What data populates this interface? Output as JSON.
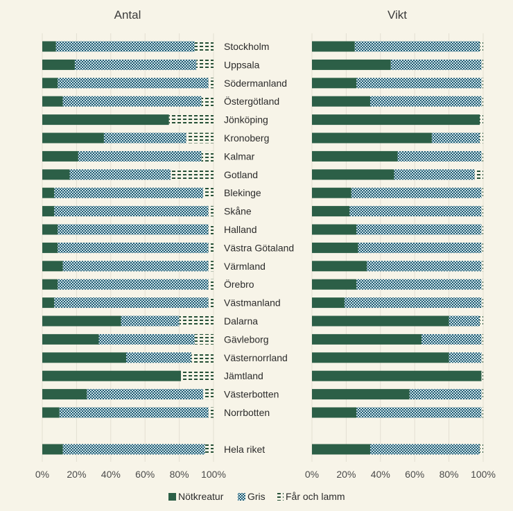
{
  "colors": {
    "background": "#f7f4e8",
    "notkreatur": "#2c5f47",
    "gris": "#1f5a70",
    "far": "#244f35",
    "grid": "#e3dfd2"
  },
  "chart_data": [
    {
      "type": "bar",
      "orientation": "horizontal",
      "stacked": true,
      "title": "Antal",
      "categories": [
        "Stockholm",
        "Uppsala",
        "Södermanland",
        "Östergötland",
        "Jönköping",
        "Kronoberg",
        "Kalmar",
        "Gotland",
        "Blekinge",
        "Skåne",
        "Halland",
        "Västra Götaland",
        "Värmland",
        "Örebro",
        "Västmanland",
        "Dalarna",
        "Gävleborg",
        "Västernorrland",
        "Jämtland",
        "Västerbotten",
        "Norrbotten",
        "Hela riket"
      ],
      "series": [
        {
          "name": "Nötkreatur",
          "values": [
            8,
            19,
            9,
            12,
            74,
            36,
            21,
            16,
            7,
            7,
            9,
            9,
            12,
            9,
            7,
            46,
            33,
            49,
            81,
            26,
            10,
            12
          ]
        },
        {
          "name": "Gris",
          "values": [
            81,
            71,
            88,
            81,
            0,
            48,
            72,
            59,
            87,
            90,
            88,
            88,
            85,
            88,
            90,
            34,
            56,
            38,
            0,
            68,
            87,
            83
          ]
        },
        {
          "name": "Får och lamm",
          "values": [
            11,
            10,
            3,
            7,
            26,
            16,
            7,
            25,
            6,
            3,
            3,
            3,
            3,
            3,
            3,
            20,
            11,
            13,
            19,
            6,
            3,
            5
          ]
        }
      ],
      "xlim": [
        0,
        100
      ],
      "xticks": [
        "0%",
        "20%",
        "40%",
        "60%",
        "80%",
        "100%"
      ]
    },
    {
      "type": "bar",
      "orientation": "horizontal",
      "stacked": true,
      "title": "Vikt",
      "categories": [
        "Stockholm",
        "Uppsala",
        "Södermanland",
        "Östergötland",
        "Jönköping",
        "Kronoberg",
        "Kalmar",
        "Gotland",
        "Blekinge",
        "Skåne",
        "Halland",
        "Västra Götaland",
        "Värmland",
        "Örebro",
        "Västmanland",
        "Dalarna",
        "Gävleborg",
        "Västernorrland",
        "Jämtland",
        "Västerbotten",
        "Norrbotten",
        "Hela riket"
      ],
      "series": [
        {
          "name": "Nötkreatur",
          "values": [
            25,
            46,
            26,
            34,
            98,
            70,
            50,
            48,
            23,
            22,
            26,
            27,
            32,
            26,
            19,
            80,
            64,
            80,
            99,
            57,
            26,
            34
          ]
        },
        {
          "name": "Gris",
          "values": [
            73,
            53,
            73,
            65,
            0,
            28,
            49,
            47,
            76,
            77,
            73,
            72,
            67,
            73,
            80,
            18,
            35,
            19,
            0,
            42,
            73,
            64
          ]
        },
        {
          "name": "Får och lamm",
          "values": [
            2,
            1,
            1,
            1,
            2,
            2,
            1,
            5,
            1,
            1,
            1,
            1,
            1,
            1,
            1,
            2,
            1,
            1,
            1,
            1,
            1,
            2
          ]
        }
      ],
      "xlim": [
        0,
        100
      ],
      "xticks": [
        "0%",
        "20%",
        "40%",
        "60%",
        "80%",
        "100%"
      ]
    }
  ],
  "legend": [
    "Nötkreatur",
    "Gris",
    "Får och lamm"
  ]
}
